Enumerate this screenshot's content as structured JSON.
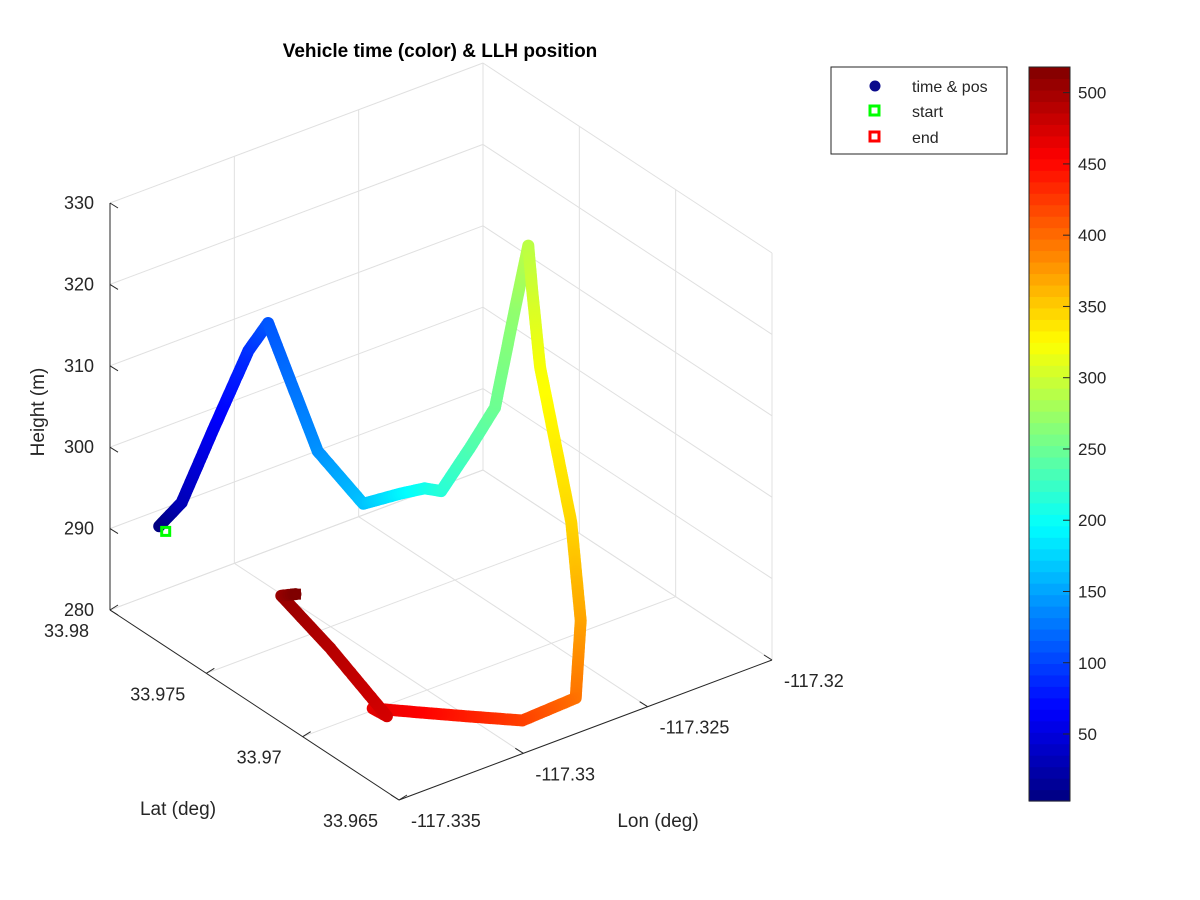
{
  "chart_data": {
    "type": "scatter",
    "title": "Vehicle time (color) & LLH position",
    "xlabel": "Lon (deg)",
    "ylabel": "Lat (deg)",
    "zlabel": "Height (m)",
    "xlim": [
      -117.335,
      -117.32
    ],
    "ylim": [
      33.965,
      33.98
    ],
    "zlim": [
      280,
      330
    ],
    "x_ticks": [
      "-117.335",
      "-117.33",
      "-117.325",
      "-117.32"
    ],
    "y_ticks": [
      "33.965",
      "33.97",
      "33.975",
      "33.98"
    ],
    "z_ticks": [
      "280",
      "290",
      "300",
      "310",
      "320",
      "330"
    ],
    "grid": true,
    "colormap": "jet",
    "colorbar": {
      "range": [
        3,
        518
      ],
      "ticks": [
        "50",
        "100",
        "150",
        "200",
        "250",
        "300",
        "350",
        "400",
        "450",
        "500"
      ]
    },
    "legend": {
      "placement": "top-right",
      "entries": [
        {
          "label": "time & pos",
          "marker": "filled-circle",
          "color": "#0a0a8c"
        },
        {
          "label": "start",
          "marker": "open-square",
          "color": "#00ff00"
        },
        {
          "label": "end",
          "marker": "open-square",
          "color": "#ff0000"
        }
      ]
    },
    "series": [
      {
        "name": "time & pos",
        "columns": [
          "lon",
          "lat",
          "height",
          "time"
        ],
        "points": [
          [
            -117.33412,
            33.97858,
            291.5,
            0
          ],
          [
            -117.33342,
            33.97832,
            294.0,
            30
          ],
          [
            -117.33228,
            33.97817,
            301.8,
            60
          ],
          [
            -117.33106,
            33.9779,
            310.6,
            90
          ],
          [
            -117.33027,
            33.9779,
            313.1,
            110
          ],
          [
            -117.33025,
            33.97535,
            301.3,
            140
          ],
          [
            -117.32958,
            33.97385,
            296.4,
            165
          ],
          [
            -117.32801,
            33.97395,
            295.7,
            190
          ],
          [
            -117.32709,
            33.97388,
            295.4,
            205
          ],
          [
            -117.32668,
            33.97355,
            295.1,
            215
          ],
          [
            -117.32599,
            33.9729,
            300.8,
            235
          ],
          [
            -117.32519,
            33.97268,
            305.0,
            250
          ],
          [
            -117.3244,
            33.97262,
            316.8,
            270
          ],
          [
            -117.32389,
            33.97263,
            323.5,
            290
          ],
          [
            -117.32411,
            33.97214,
            319.0,
            300
          ],
          [
            -117.32464,
            33.97105,
            311.9,
            320
          ],
          [
            -117.32499,
            33.96898,
            296.5,
            345
          ],
          [
            -117.32574,
            33.96752,
            287.5,
            370
          ],
          [
            -117.32698,
            33.96618,
            281.5,
            395
          ],
          [
            -117.32843,
            33.96708,
            279.0,
            420
          ],
          [
            -117.32982,
            33.96847,
            279.0,
            440
          ],
          [
            -117.33087,
            33.96955,
            279.0,
            455
          ],
          [
            -117.33179,
            33.97051,
            279.0,
            465
          ],
          [
            -117.33173,
            33.96985,
            279.0,
            475
          ],
          [
            -117.33212,
            33.97228,
            284.0,
            490
          ],
          [
            -117.33313,
            33.97352,
            289.7,
            505
          ],
          [
            -117.33271,
            33.97333,
            289.7,
            518
          ]
        ]
      }
    ],
    "start": {
      "lon": -117.334,
      "lat": 33.9784,
      "height": 291.0
    },
    "end": {
      "lon": -117.33271,
      "lat": 33.97333,
      "height": 289.7
    }
  }
}
